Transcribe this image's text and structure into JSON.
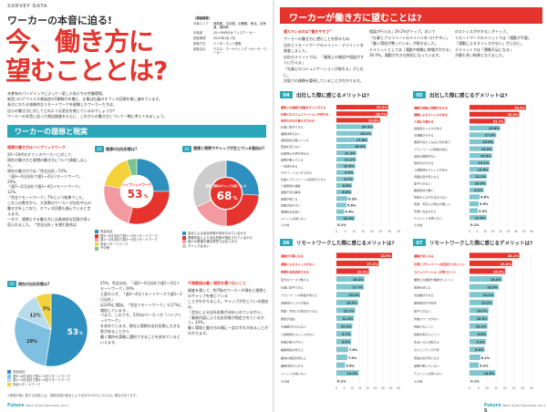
{
  "left": {
    "kicker": "SURVEY DATA",
    "subtitle": "ワーカーの本音に迫る!",
    "title_line1": "今、働き方に",
    "title_line2": "望むこととは?",
    "survey_box": {
      "header": "〈調査概要〉",
      "rows": [
        {
          "label": "対象エリア",
          "value": "首都圏、中京圏、近畿圏、東北、北海道、福岡県"
        },
        {
          "label": "対象者",
          "value": "20〜50代のオフィスワーカー"
        },
        {
          "label": "調査期間",
          "value": "2022年1月 2日"
        },
        {
          "label": "調査方法",
          "value": "インターネット調査"
        },
        {
          "label": "調査会社",
          "value": "クロス・マーケティング リサーチ・ワーカー"
        }
      ]
    },
    "intro": [
      "未曽有のパンデミックによって一変した私たちの労働環境。",
      "新型コロナウイルス感染症の5類移行を機に、企業は社員のオフィス回帰を推し進めています。",
      "長きにわたる強制的なリモートワークを経験したワーカーたちは、",
      "自らの働き方に対してどのような変化を感じているのでしょうか?",
      "ワーカーの本音に迫った独自調査をもとに、これからの働き方について一緒に考えてみましょう。"
    ],
    "section_title": "ワーカーの理想と現実",
    "sub_head": "理想の働き方はハイブリッドワーク",
    "body1": [
      "20〜50代のオフィスワーカーに対して、",
      "現在の働き方と理想の働き方について調査しました。",
      "現在の働き方では「完全出社」53%、",
      "「週3〜4日出社で週1〜2日リモートワーク」29%、",
      "「週1〜2日出社で週3〜4日リモートワーク」12%、",
      "「完全リモートワーク」7%という結果でした。",
      "これらの数字から、大多数のワーカーが出社中心の",
      "働き方をしており、オフィス回帰も進んでいると言えます。",
      "一方で、理想とする働き方には具体的な回答が多く",
      "見られました。「完全出社」を望む割合は"
    ],
    "q1": {
      "num": "01",
      "title": "理想の出社形態は?"
    },
    "q2": {
      "num": "02",
      "title": "理想と現実でギャップが生じている理由は?"
    },
    "q3": {
      "num": "03",
      "title": "現在の出社形態は?"
    },
    "donut_center": {
      "label": "ハイブリッドワーク",
      "value": "53",
      "unit": "%"
    },
    "pie2_center": {
      "label": "業務と環境のギャップを感じている",
      "value": "68",
      "unit": "%"
    },
    "legend1": [
      {
        "text": "完全出社",
        "color": "#2f8fbf"
      },
      {
        "text": "週3〜4日出社で週1〜2日リモートワーク",
        "color": "#e5342d"
      },
      {
        "text": "週1〜2日出社で週3〜4日リモートワーク",
        "color": "#f29aa0"
      },
      {
        "text": "完全リモートワーク",
        "color": "#f3d13a"
      },
      {
        "text": "その他",
        "color": "#7cc58c"
      }
    ],
    "legend2": [
      {
        "text": "会社による出社形態が決められているから",
        "color": "#2f8fbf"
      },
      {
        "text": "業務内容により出社形態が指定されているから",
        "color": "#e5342d"
      },
      {
        "text": "個人の希望が通る環境ではないから",
        "color": "#f29aa0"
      },
      {
        "text": "ギャップはない",
        "color": "#cccccc"
      }
    ],
    "body2": [
      "25%、完全出社、「週3〜4日出社で週1〜2日リモートワーク」29%",
      "と変わらず、「週3〜4日リモートワークで週1〜2日出社」",
      "は24%に増加。「完全リモートワーク」も17%に増加しています。",
      "つまり、このうち、53%のワーカーが「ハイブリッドワーク」",
      "を求めています。現在と理想の出社形態に大きな差があることから",
      "働く場所を柔軟に選択できることを求めているといえます。"
    ],
    "sub_head2": "不満要因は働く場所を選べないこと",
    "body3": [
      "調査を通して、約7割のワーカーが現在と理想とのギャップを感じている",
      "ことがわかりました。ギャップが生じている理由は、",
      "「会社による出社形態が決められているから」",
      "「業務内容により出社形態が指定されているから」24%。",
      "働く環境と働き方の間に一定のずれがあることがわかります。"
    ],
    "pie3_labels": [
      {
        "text": "53",
        "unit": "%"
      },
      {
        "text": "29%"
      },
      {
        "text": "12%"
      },
      {
        "text": "7%"
      }
    ],
    "legend3": [
      {
        "text": "完全出社",
        "color": "#2f8fbf"
      },
      {
        "text": "週3〜4日出社で週1〜2日リモートワーク",
        "color": "#7fc0e0"
      },
      {
        "text": "週1〜2日出社で週3〜4日リモートワーク",
        "color": "#b8dceb"
      },
      {
        "text": "完全リモートワーク",
        "color": "#f3d13a"
      }
    ],
    "footnote": "※調査対象に属する回答には、端数処理の都合により合計が100%にならない場合があります。",
    "footer_brand": "Future",
    "footer_text": "Work Style Discovery vol.4"
  },
  "chart_data": [
    {
      "type": "pie",
      "title": "理想の出社形態は?",
      "categories": [
        "完全出社",
        "週3〜4日出社で週1〜2日リモートワーク",
        "週1〜2日出社で週3〜4日リモートワーク",
        "完全リモートワーク",
        "その他"
      ],
      "values": [
        25,
        29,
        24,
        17,
        5
      ]
    },
    {
      "type": "pie",
      "title": "理想と現実でギャップが生じている理由は?",
      "categories": [
        "会社による出社形態が決められているから",
        "業務内容により出社形態が指定されているから",
        "個人の希望が通る環境ではないから",
        "ギャップはない"
      ],
      "values": [
        26,
        24,
        18,
        32
      ]
    },
    {
      "type": "pie",
      "title": "現在の出社形態は?",
      "categories": [
        "完全出社",
        "週3〜4日出社で週1〜2日リモートワーク",
        "週1〜2日出社で週3〜4日リモートワーク",
        "完全リモートワーク"
      ],
      "values": [
        53,
        29,
        12,
        7
      ]
    },
    {
      "type": "bar",
      "title": "出社した際に感じるメリットは?",
      "categories": [
        "業務上の確認や相談がすぐに行える",
        "社員とのコミュニケーションが取れる",
        "気持ちの切り替えができる",
        "仕事に集中できる",
        "業務効率がよい",
        "通信環境が整っている",
        "孤独を感じない",
        "社員同士の仲が深まる",
        "設備が整っている",
        "一体感がある",
        "モチベーションが上がる",
        "仕事とプライベートの区別ができる",
        "人間関係の構築",
        "運動不足の解消",
        "健康が保てる",
        "情報が得やすい",
        "偶発的な出会い",
        "メリットは特にない",
        "その他"
      ],
      "values": [
        29.2,
        28.7,
        24.6,
        20.9,
        20.1,
        17.8,
        16.9,
        11.3,
        11.1,
        10.6,
        9.9,
        9.7,
        8.8,
        8.6,
        6.3,
        5.6,
        4.4,
        10.4,
        0.1
      ],
      "xlim": [
        0,
        35
      ]
    },
    {
      "type": "bar",
      "title": "出社した際に感じるデメリットは?",
      "categories": [
        "通勤や移動に時間がかかる",
        "通勤によるストレスがある",
        "人混みで疲れる",
        "感染症のリスクがある",
        "交通費がかかる",
        "服装や身だしなみに気を使う",
        "プライベートの時間が減る",
        "自由な時間がない",
        "昼食代がかかる",
        "人間関係のストレスがある",
        "周囲の目が気になる",
        "集中できない",
        "職場環境が悪い",
        "早起きしなければならない",
        "家事・育児との両立が難しい",
        "天候に左右される",
        "デメリットは特にない",
        "その他"
      ],
      "values": [
        36.4,
        32.0,
        22.7,
        19.8,
        17.3,
        15.9,
        15.0,
        14.5,
        13.1,
        12.6,
        11.2,
        10.9,
        9.1,
        6.6,
        5.9,
        5.3,
        11.0,
        0.1
      ],
      "xlim": [
        0,
        40
      ]
    },
    {
      "type": "bar",
      "title": "リモートワークした際に感じるメリットは?",
      "categories": [
        "通勤が不要になる",
        "通勤によるストレスがない",
        "時間を有効活用できる",
        "自分のペースで働ける",
        "仕事に集中できる",
        "プライベートの時間が増える",
        "感染症のリスクが減る",
        "家事・育児との両立ができる",
        "服装が自由",
        "交通費がかからない",
        "人間関係のストレスがない",
        "休憩が取りやすい",
        "睡眠時間が増える",
        "趣味の時間が増える",
        "業務効率が上がる",
        "メリットは特にない",
        "その他"
      ],
      "values": [
        35.9,
        27.2,
        20.9,
        18.1,
        17.7,
        15.3,
        14.0,
        12.1,
        11.3,
        10.3,
        9.7,
        9.5,
        7.6,
        7.0,
        5.6,
        14.3,
        0.1
      ],
      "xlim": [
        0,
        40
      ]
    },
    {
      "type": "bar",
      "title": "リモートワークした際に感じるデメリットは?",
      "categories": [
        "運動不足になる",
        "仕事とプライベートの区別がつきにくい",
        "コミュニケーションが取りにくい",
        "業務上の確認や相談がしにくい",
        "孤独を感じる",
        "光熱費がかかる",
        "通信環境が不安定",
        "集中できない",
        "作業スペースがない",
        "評価されにくい",
        "情報共有がしにくい",
        "生活リズムが乱れる",
        "セキュリティが不安",
        "家族の目が気になる",
        "設備が整っていない",
        "デメリットは特にない",
        "その他"
      ],
      "values": [
        28.1,
        24.0,
        20.0,
        18.4,
        16.5,
        14.1,
        13.2,
        10.7,
        10.5,
        10.1,
        9.8,
        9.2,
        8.5,
        6.1,
        5.2,
        14.6,
        0.1
      ],
      "xlim": [
        0,
        35
      ]
    }
  ],
  "right": {
    "section_title": "ワーカーが働き方に望むことは?",
    "sub_head": "望んでいるのは“働きやすさ”",
    "body": [
      "ワーカーの働き方に望むことを探るため、",
      "出社とリモートワークのメリット・デメリットを",
      "調査しました。",
      "出社のメリットでは、「業務上の確認や相談がすぐに行える」",
      "「社員とのコミュニケーションが取れる」が上位に。",
      "対面での連携を重視していることがわかります。"
    ],
    "body_col2": [
      "相談が行える」29.2%がトップ。次いで",
      "「仕事とプライベートのメリハリをつけやすい」",
      "「働く環境が整っている」が続きました。",
      "デメリットとしては「通勤や移動に時間がかかる」",
      "36.4%。通勤が大きな負担になっています。"
    ],
    "body_col3": [
      "のストレスがかかる」がトップ。",
      "リモートワークのメリットでは「通勤が不要」",
      "「通勤によるストレスがない」が上位に。",
      "デメリットでは「運動不足になる」",
      "が最も多い結果となりました。"
    ],
    "q4": {
      "num": "04",
      "title": "出社した際に感じるメリットは?"
    },
    "q5": {
      "num": "05",
      "title": "出社した際に感じるデメリットは?"
    },
    "q6": {
      "num": "06",
      "title": "リモートワークした際に感じるメリットは?"
    },
    "q7": {
      "num": "07",
      "title": "リモートワークした際に感じるデメリットは?"
    },
    "axis_ticks_a": [
      "0",
      "5",
      "10",
      "15",
      "20",
      "25",
      "30",
      "35"
    ],
    "axis_ticks_b": [
      "0",
      "5",
      "10",
      "15",
      "20",
      "25",
      "30",
      "35",
      "40"
    ],
    "footer_brand": "Future",
    "footer_text": "Work Style Discovery vol.4",
    "page_num": "5"
  },
  "colors": {
    "accent_red": "#e5342d",
    "accent_teal": "#2aa7b8",
    "accent_orange": "#f08a2a",
    "bar_teal": "#7fc6cf",
    "bar_dark": "#e5342d"
  }
}
